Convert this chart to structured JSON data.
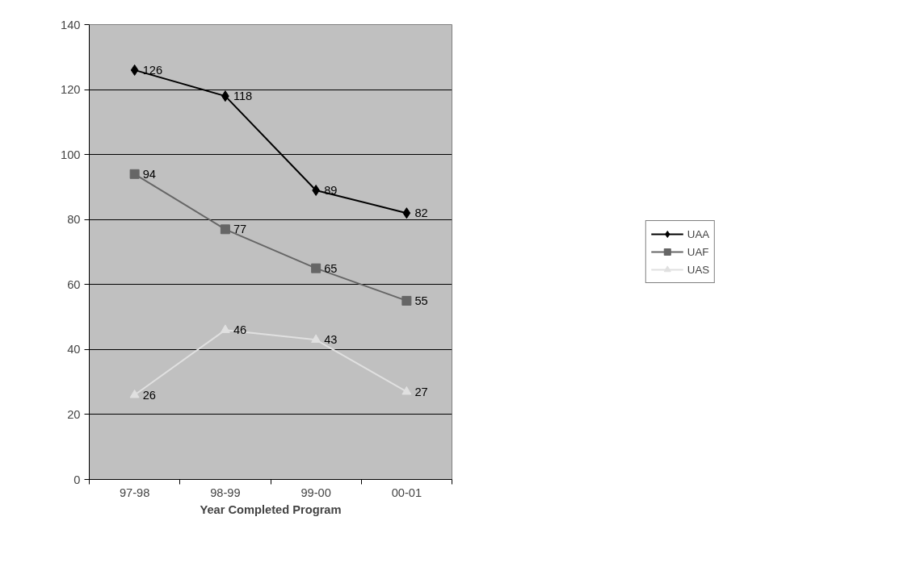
{
  "chart_data": {
    "type": "line",
    "xlabel": "Year Completed Program",
    "categories": [
      "97-98",
      "98-99",
      "99-00",
      "00-01"
    ],
    "series": [
      {
        "name": "UAA",
        "color": "#000000",
        "marker": "diamond",
        "values": [
          126,
          118,
          89,
          82
        ]
      },
      {
        "name": "UAF",
        "color": "#666666",
        "marker": "square",
        "values": [
          94,
          77,
          65,
          55
        ]
      },
      {
        "name": "UAS",
        "color": "#e0e0e0",
        "marker": "triangle",
        "values": [
          26,
          46,
          43,
          27
        ]
      }
    ],
    "ylim": [
      0,
      140
    ],
    "yticks": [
      0,
      20,
      40,
      60,
      80,
      100,
      120,
      140
    ],
    "grid": "y",
    "legend": "right",
    "data_labels": true
  }
}
